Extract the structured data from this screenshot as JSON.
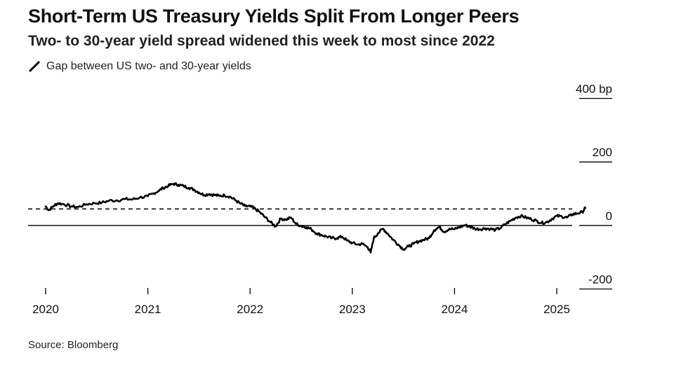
{
  "header": {
    "title": "Short-Term US Treasury Yields Split From Longer Peers",
    "subtitle": "Two- to 30-year yield spread widened this week to most since 2022"
  },
  "legend": {
    "label": "Gap between US two- and 30-year yields",
    "icon": "line-icon"
  },
  "footer": {
    "source": "Source: Bloomberg"
  },
  "colors": {
    "line": "#000000",
    "axis": "#000000"
  },
  "chart_data": {
    "type": "line",
    "title": "Short-Term US Treasury Yields Split From Longer Peers",
    "subtitle": "Two- to 30-year yield spread widened this week to most since 2022",
    "xlabel": "",
    "ylabel": "",
    "unit": "bp",
    "xlim": [
      2020.0,
      2025.55
    ],
    "ylim": [
      -200,
      400
    ],
    "x_ticks": [
      2020,
      2021,
      2022,
      2023,
      2024,
      2025
    ],
    "x_tick_labels": [
      "2020",
      "2021",
      "2022",
      "2023",
      "2024",
      "2025"
    ],
    "y_ticks": [
      400,
      200,
      0,
      -200
    ],
    "y_tick_labels": [
      "400 bp",
      "200",
      "0",
      "-200"
    ],
    "reference_line": {
      "value": 52,
      "style": "dashed"
    },
    "zero_line": 0,
    "series": [
      {
        "name": "Gap between US two- and 30-year yields",
        "x": [
          2020.0,
          2020.03,
          2020.08,
          2020.12,
          2020.18,
          2020.25,
          2020.32,
          2020.4,
          2020.48,
          2020.55,
          2020.62,
          2020.7,
          2020.78,
          2020.85,
          2020.92,
          2021.0,
          2021.05,
          2021.1,
          2021.15,
          2021.2,
          2021.25,
          2021.3,
          2021.35,
          2021.4,
          2021.45,
          2021.5,
          2021.55,
          2021.6,
          2021.65,
          2021.7,
          2021.75,
          2021.8,
          2021.85,
          2021.9,
          2021.95,
          2022.0,
          2022.05,
          2022.1,
          2022.15,
          2022.2,
          2022.25,
          2022.3,
          2022.35,
          2022.4,
          2022.45,
          2022.5,
          2022.55,
          2022.6,
          2022.65,
          2022.7,
          2022.75,
          2022.8,
          2022.85,
          2022.9,
          2022.95,
          2023.0,
          2023.05,
          2023.1,
          2023.15,
          2023.18,
          2023.21,
          2023.25,
          2023.3,
          2023.35,
          2023.4,
          2023.45,
          2023.5,
          2023.55,
          2023.6,
          2023.65,
          2023.7,
          2023.75,
          2023.8,
          2023.85,
          2023.9,
          2023.95,
          2024.0,
          2024.05,
          2024.1,
          2024.15,
          2024.2,
          2024.25,
          2024.3,
          2024.35,
          2024.4,
          2024.45,
          2024.5,
          2024.55,
          2024.6,
          2024.65,
          2024.7,
          2024.75,
          2024.8,
          2024.85,
          2024.9,
          2024.95,
          2025.0,
          2025.05,
          2025.1,
          2025.15,
          2025.2,
          2025.25,
          2025.28
        ],
        "values": [
          60,
          48,
          62,
          70,
          67,
          60,
          58,
          67,
          70,
          72,
          78,
          79,
          83,
          82,
          88,
          92,
          100,
          108,
          118,
          125,
          131,
          128,
          124,
          119,
          113,
          104,
          96,
          99,
          96,
          93,
          95,
          91,
          81,
          70,
          61,
          60,
          53,
          40,
          25,
          10,
          -3,
          22,
          18,
          25,
          5,
          -2,
          -5,
          -12,
          -25,
          -30,
          -35,
          -40,
          -40,
          -35,
          -48,
          -55,
          -60,
          -58,
          -68,
          -85,
          -40,
          -25,
          -10,
          -27,
          -45,
          -60,
          -75,
          -66,
          -58,
          -50,
          -45,
          -40,
          -15,
          -5,
          -20,
          -10,
          -12,
          -5,
          1,
          -4,
          -10,
          -12,
          -9,
          -11,
          -14,
          -8,
          5,
          15,
          25,
          30,
          25,
          20,
          15,
          8,
          10,
          20,
          30,
          28,
          25,
          35,
          38,
          42,
          55
        ]
      }
    ]
  }
}
